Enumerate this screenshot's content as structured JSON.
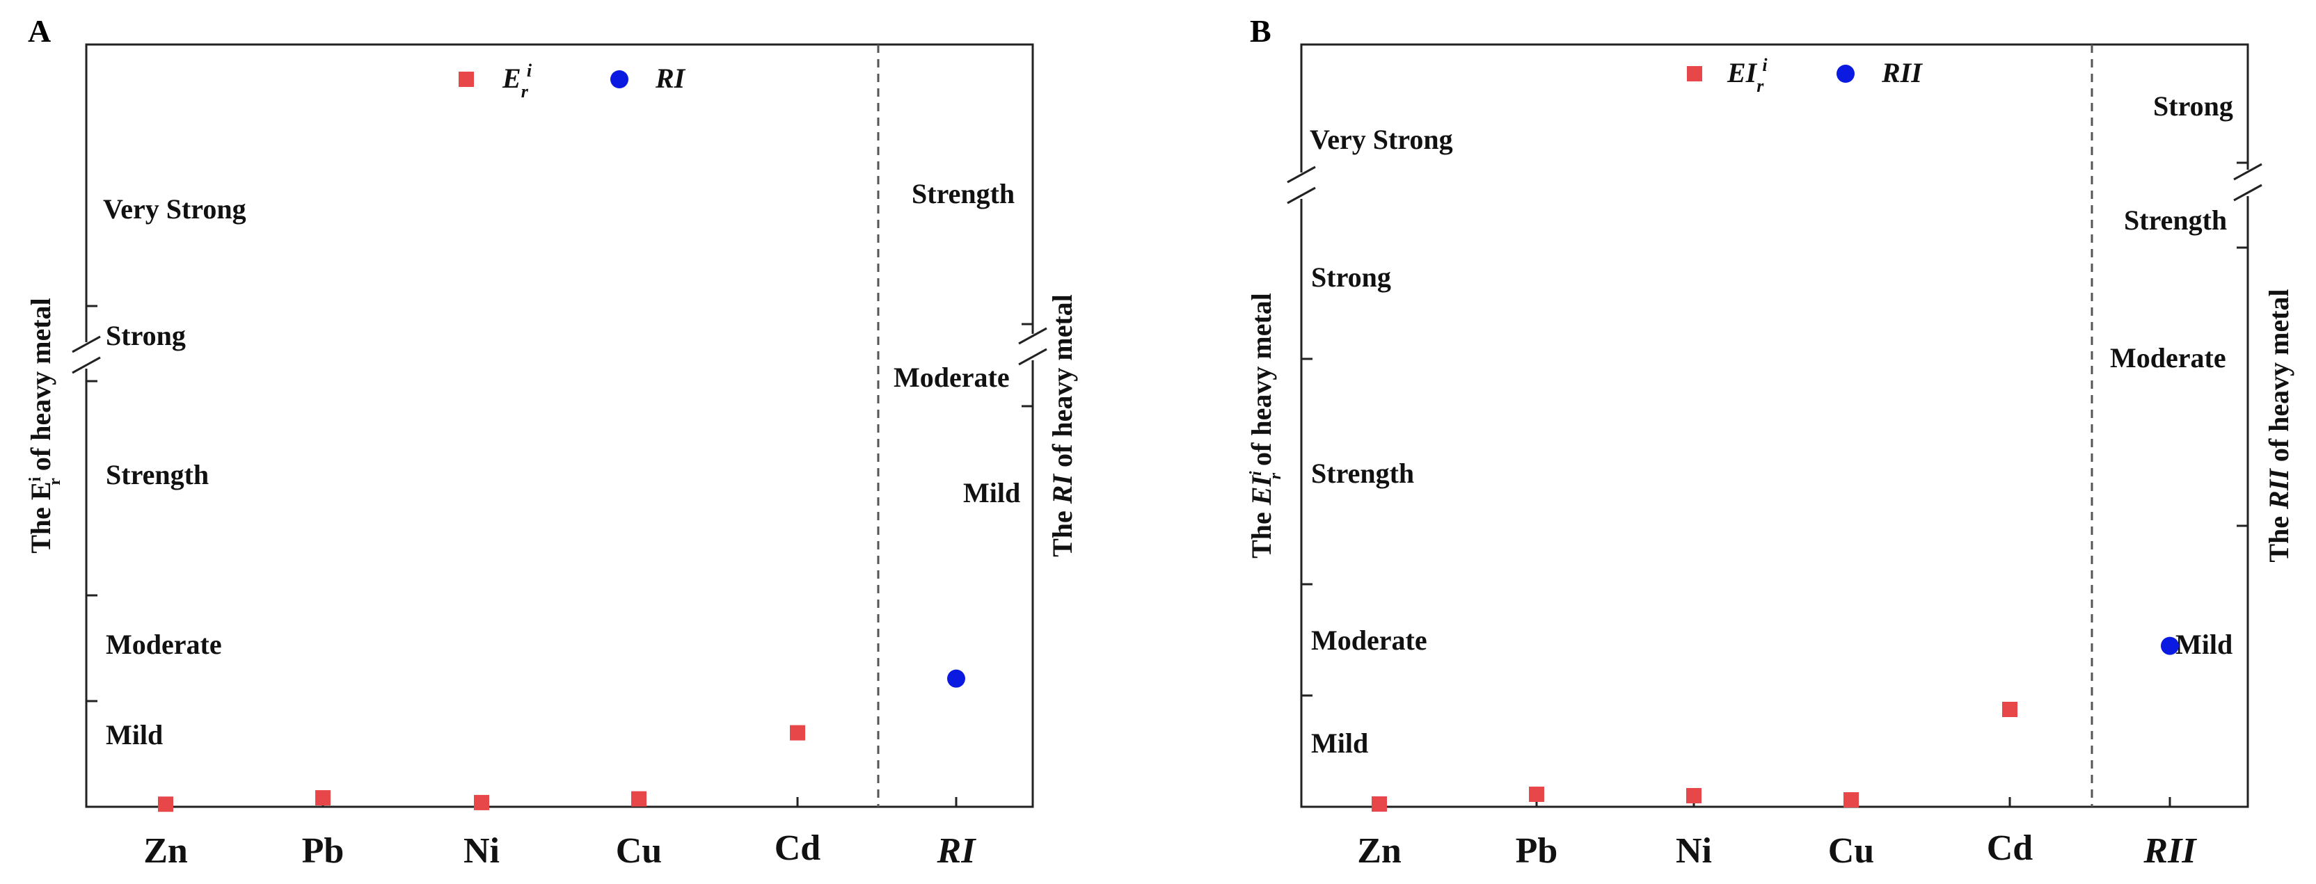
{
  "colors": {
    "er_marker": "#e8474a",
    "ri_marker": "#0a1ae0",
    "axis": "#222222",
    "divider": "#555555"
  },
  "chart_data": [
    {
      "panel": "A",
      "type": "scatter",
      "categories": [
        "Zn",
        "Pb",
        "Ni",
        "Cu",
        "Cd"
      ],
      "ri_category": "RI",
      "legend": {
        "series1": "E",
        "series1_sub": "r",
        "series1_sup": "i",
        "series2": "RI",
        "placement": "top-center"
      },
      "left_axis": {
        "label_prefix": "The E",
        "label_sup": "i",
        "label_sub": "r",
        "label_suffix": " of heavy metal",
        "levels": [
          "Mild",
          "Moderate",
          "Strength",
          "Strong",
          "Very Strong"
        ]
      },
      "right_axis": {
        "label_prefix": "The ",
        "label_italic": "RI",
        "label_suffix": " of heavy metal",
        "levels": [
          "Mild",
          "Moderate",
          "Strength"
        ]
      },
      "series": [
        {
          "name": "Er",
          "categories": [
            "Zn",
            "Pb",
            "Ni",
            "Cu",
            "Cd"
          ],
          "values": [
            0.99,
            3.4,
            1.6,
            3.0,
            28.0
          ]
        },
        {
          "name": "RI",
          "categories": [
            "RI"
          ],
          "values": [
            48.0
          ]
        }
      ]
    },
    {
      "panel": "B",
      "type": "scatter",
      "categories": [
        "Zn",
        "Pb",
        "Ni",
        "Cu",
        "Cd"
      ],
      "ri_category": "RII",
      "legend": {
        "series1": "EI",
        "series1_sub": "r",
        "series1_sup": "i",
        "series2": "RII",
        "placement": "top-center"
      },
      "left_axis": {
        "label_prefix": "The ",
        "label_italic": "EI",
        "label_sup": "i",
        "label_sub": "r",
        "label_suffix": " of heavy metal",
        "levels": [
          "Mild",
          "Moderate",
          "Strength",
          "Strong",
          "Very Strong"
        ]
      },
      "right_axis": {
        "label_prefix": "The ",
        "label_italic": "RII",
        "label_suffix": " of heavy metal",
        "levels": [
          "Mild",
          "Moderate",
          "Strength",
          "Strong"
        ]
      },
      "series": [
        {
          "name": "EIr",
          "categories": [
            "Zn",
            "Pb",
            "Ni",
            "Cu",
            "Cd"
          ],
          "values": [
            1.0,
            4.5,
            4.0,
            2.5,
            35.0
          ]
        },
        {
          "name": "RII",
          "categories": [
            "RII"
          ],
          "values": [
            63.0
          ]
        }
      ]
    }
  ]
}
